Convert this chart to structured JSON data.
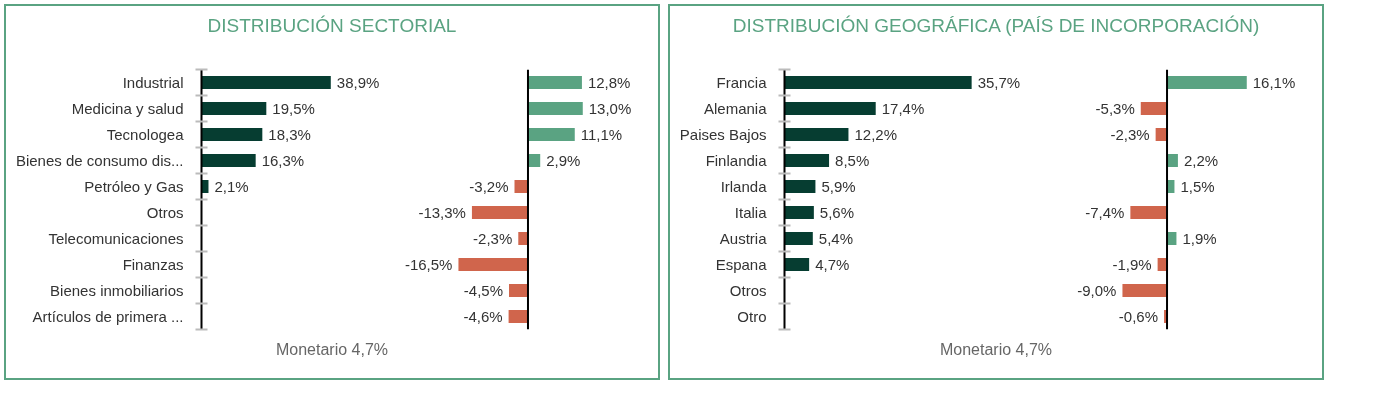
{
  "chart_data": [
    {
      "type": "bar",
      "orientation": "horizontal",
      "title": "DISTRIBUCIÓN SECTORIAL",
      "categories": [
        "Industrial",
        "Medicina y salud",
        "Tecnologea",
        "Bienes de consumo dis...",
        "Petróleo y Gas",
        "Otros",
        "Telecomunicaciones",
        "Finanzas",
        "Bienes inmobiliarios",
        "Artículos de primera ..."
      ],
      "values": [
        38.9,
        19.5,
        18.3,
        16.3,
        2.1,
        null,
        null,
        null,
        null,
        null
      ],
      "color": "#063d31",
      "value_labels": [
        "38,9%",
        "19,5%",
        "18,3%",
        "16,3%",
        "2,1%",
        null,
        null,
        null,
        null,
        null
      ],
      "tick_labels": "y",
      "annotations": [
        "Monetario 4,7%"
      ]
    },
    {
      "type": "bar",
      "orientation": "horizontal",
      "categories": [
        null,
        null,
        null,
        null,
        null,
        null,
        null,
        null,
        null,
        null
      ],
      "values": [
        12.8,
        13.0,
        11.1,
        2.9,
        -3.2,
        -13.3,
        -2.3,
        -16.5,
        -4.5,
        -4.6
      ],
      "colors": [
        "#5aa382",
        "#5aa382",
        "#5aa382",
        "#5aa382",
        "#d0654c",
        "#d0654c",
        "#d0654c",
        "#d0654c",
        "#d0654c",
        "#d0654c"
      ],
      "value_labels": [
        "12,8%",
        "13,0%",
        "11,1%",
        "2,9%",
        "-3,2%",
        "-13,3%",
        "-2,3%",
        "-16,5%",
        "-4,5%",
        "-4,6%"
      ],
      "tick_labels": false
    },
    {
      "type": "bar",
      "orientation": "horizontal",
      "title": "DISTRIBUCIÓN GEOGRÁFICA (PAÍS DE INCORPORACIÓN)",
      "categories": [
        "Francia",
        "Alemania",
        "Paises Bajos",
        "Finlandia",
        "Irlanda",
        "Italia",
        "Austria",
        "Espana",
        "Otros",
        "Otro"
      ],
      "values": [
        35.7,
        17.4,
        12.2,
        8.5,
        5.9,
        5.6,
        5.4,
        4.7,
        null,
        null
      ],
      "color": "#063d31",
      "value_labels": [
        "35,7%",
        "17,4%",
        "12,2%",
        "8,5%",
        "5,9%",
        "5,6%",
        "5,4%",
        "4,7%",
        null,
        null
      ],
      "tick_labels": "y",
      "annotations": [
        "Monetario 4,7%"
      ]
    },
    {
      "type": "bar",
      "orientation": "horizontal",
      "categories": [
        null,
        null,
        null,
        null,
        null,
        null,
        null,
        null,
        null,
        null
      ],
      "values": [
        16.1,
        -5.3,
        -2.3,
        2.2,
        1.5,
        -7.4,
        1.9,
        -1.9,
        -9.0,
        -0.6
      ],
      "colors": [
        "#5aa382",
        "#d0654c",
        "#d0654c",
        "#5aa382",
        "#5aa382",
        "#d0654c",
        "#5aa382",
        "#d0654c",
        "#d0654c",
        "#d0654c"
      ],
      "value_labels": [
        "16,1%",
        "-5,3%",
        "-2,3%",
        "2,2%",
        "1,5%",
        "-7,4%",
        "1,9%",
        "-1,9%",
        "-9,0%",
        "-0,6%"
      ],
      "tick_labels": false
    }
  ]
}
